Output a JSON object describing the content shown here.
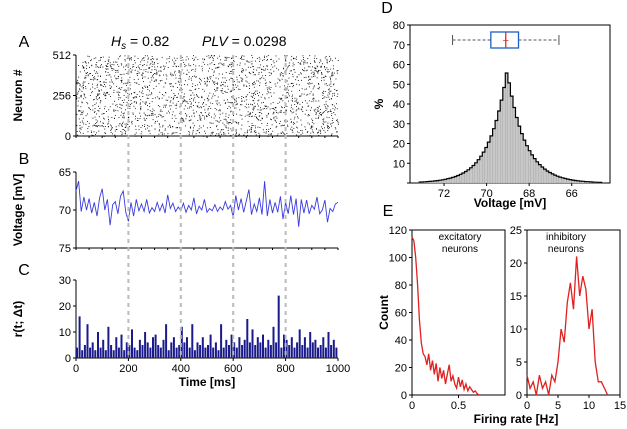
{
  "header": {
    "hs_symbol": "H",
    "hs_sub": "s",
    "hs_text": " = 0.82",
    "plv_label": "PLV",
    "plv_text": " = 0.0298"
  },
  "colors": {
    "raster": "#000000",
    "voltage": "#3a3adf",
    "rate": "#1a1a8c",
    "histogram": "#c8c8c8",
    "box": "#1f5fc4",
    "box_median": "#e03020",
    "firing": "#e02020",
    "divider": "#bbbbbb"
  },
  "chart_data": [
    {
      "id": "A",
      "type": "scatter",
      "letter": "A",
      "ylabel": "Neuron #",
      "xlim": [
        0,
        1000
      ],
      "ylim": [
        0,
        512
      ],
      "yticks": [
        "0",
        "256",
        "512"
      ],
      "ytick_values": [
        0,
        256,
        512
      ],
      "neurons": 512,
      "spike_markers_shown": 2200
    },
    {
      "id": "B",
      "type": "line",
      "letter": "B",
      "ylabel": "Voltage [mV]",
      "xlim": [
        0,
        1000
      ],
      "ylim": [
        -75,
        -65
      ],
      "yticks": [
        "65",
        "70",
        "75"
      ],
      "ytick_values": [
        -65,
        -70,
        -75
      ],
      "x": [
        0,
        10,
        20,
        30,
        40,
        50,
        60,
        70,
        80,
        90,
        100,
        110,
        120,
        130,
        140,
        150,
        160,
        170,
        180,
        190,
        200,
        210,
        220,
        230,
        240,
        250,
        260,
        270,
        280,
        290,
        300,
        310,
        320,
        330,
        340,
        350,
        360,
        370,
        380,
        390,
        400,
        410,
        420,
        430,
        440,
        450,
        460,
        470,
        480,
        490,
        500,
        510,
        520,
        530,
        540,
        550,
        560,
        570,
        580,
        590,
        600,
        610,
        620,
        630,
        640,
        650,
        660,
        670,
        680,
        690,
        700,
        710,
        720,
        730,
        740,
        750,
        760,
        770,
        780,
        790,
        800,
        810,
        820,
        830,
        840,
        850,
        860,
        870,
        880,
        890,
        900,
        910,
        920,
        930,
        940,
        950,
        960,
        970,
        980,
        990,
        1000
      ],
      "values": [
        -67.5,
        -66.2,
        -70.2,
        -68.3,
        -70.0,
        -68.5,
        -70.4,
        -69.0,
        -70.8,
        -68.4,
        -67.2,
        -70.0,
        -68.6,
        -72.0,
        -69.3,
        -68.9,
        -70.5,
        -68.2,
        -67.5,
        -70.3,
        -71.5,
        -69.0,
        -70.8,
        -68.6,
        -70.1,
        -69.2,
        -70.2,
        -68.6,
        -70.4,
        -69.7,
        -70.2,
        -69.0,
        -70.1,
        -69.2,
        -70.4,
        -68.0,
        -69.8,
        -69.1,
        -70.2,
        -69.6,
        -70.1,
        -69.1,
        -70.3,
        -69.4,
        -70.0,
        -68.4,
        -70.5,
        -69.5,
        -70.0,
        -68.6,
        -70.3,
        -69.8,
        -70.1,
        -69.3,
        -70.2,
        -69.6,
        -70.0,
        -68.9,
        -69.9,
        -69.4,
        -71.0,
        -68.1,
        -70.0,
        -68.5,
        -70.3,
        -68.8,
        -67.3,
        -70.6,
        -69.2,
        -70.2,
        -68.4,
        -70.6,
        -66.2,
        -70.8,
        -68.6,
        -70.4,
        -69.0,
        -70.3,
        -68.2,
        -71.2,
        -69.0,
        -70.5,
        -68.1,
        -70.6,
        -68.5,
        -72.2,
        -68.6,
        -70.4,
        -68.7,
        -70.5,
        -69.4,
        -69.9,
        -68.3,
        -70.5,
        -70.0,
        -68.7,
        -71.6,
        -69.8,
        -70.2,
        -69.2,
        -69.0
      ]
    },
    {
      "id": "C",
      "type": "bar",
      "letter": "C",
      "ylabel": "r(t; Δt)",
      "xlabel": "Time [ms]",
      "xlim": [
        0,
        1000
      ],
      "ylim": [
        0,
        30
      ],
      "yticks": [
        "0",
        "10",
        "20",
        "30"
      ],
      "ytick_values": [
        0,
        10,
        20,
        30
      ],
      "xticks": [
        "0",
        "200",
        "400",
        "600",
        "800",
        "1000"
      ],
      "xtick_values": [
        0,
        200,
        400,
        600,
        800,
        1000
      ],
      "x": [
        0,
        10,
        20,
        30,
        40,
        50,
        60,
        70,
        80,
        90,
        100,
        110,
        120,
        130,
        140,
        150,
        160,
        170,
        180,
        190,
        200,
        210,
        220,
        230,
        240,
        250,
        260,
        270,
        280,
        290,
        300,
        310,
        320,
        330,
        340,
        350,
        360,
        370,
        380,
        390,
        400,
        410,
        420,
        430,
        440,
        450,
        460,
        470,
        480,
        490,
        500,
        510,
        520,
        530,
        540,
        550,
        560,
        570,
        580,
        590,
        600,
        610,
        620,
        630,
        640,
        650,
        660,
        670,
        680,
        690,
        700,
        710,
        720,
        730,
        740,
        750,
        760,
        770,
        780,
        790,
        800,
        810,
        820,
        830,
        840,
        850,
        860,
        870,
        880,
        890,
        900,
        910,
        920,
        930,
        940,
        950,
        960,
        970,
        980,
        990
      ],
      "values": [
        4,
        16,
        3,
        5,
        13,
        4,
        6,
        3,
        10,
        4,
        7,
        3,
        12,
        5,
        3,
        8,
        4,
        9,
        3,
        6,
        5,
        11,
        4,
        3,
        7,
        5,
        10,
        6,
        4,
        8,
        9,
        5,
        4,
        7,
        13,
        3,
        6,
        8,
        4,
        5,
        12,
        6,
        8,
        4,
        13,
        3,
        6,
        5,
        8,
        4,
        5,
        9,
        4,
        6,
        3,
        13,
        4,
        7,
        5,
        9,
        6,
        4,
        8,
        5,
        7,
        15,
        6,
        11,
        5,
        8,
        6,
        9,
        4,
        7,
        5,
        12,
        6,
        24,
        4,
        9,
        7,
        5,
        8,
        4,
        6,
        11,
        5,
        8,
        4,
        10,
        6,
        7,
        4,
        5,
        8,
        4,
        10,
        5,
        7,
        4
      ]
    },
    {
      "id": "D",
      "type": "bar",
      "letter": "D",
      "ylabel": "%",
      "xlabel": "Voltage [mV]",
      "xlim": [
        -73.6,
        -64.2
      ],
      "ylim": [
        0,
        80
      ],
      "yticks": [
        "0",
        "10",
        "20",
        "30",
        "40",
        "50",
        "60",
        "70",
        "80"
      ],
      "ytick_values": [
        0,
        10,
        20,
        30,
        40,
        50,
        60,
        70,
        80
      ],
      "xticks": [
        "72",
        "70",
        "68",
        "66"
      ],
      "xtick_values": [
        -72,
        -70,
        -68,
        -66
      ],
      "peak_value": 57,
      "peak_at": -69.1,
      "box": {
        "whisker_low": -71.6,
        "q1": -69.8,
        "median": -69.1,
        "q3": -68.5,
        "whisker_high": -66.6,
        "mean": -69.1
      }
    },
    {
      "id": "E1",
      "type": "line",
      "letter": "E",
      "annotation_line1": "excitatory",
      "annotation_line2": "neurons",
      "ylabel": "Count",
      "xlim": [
        0,
        1
      ],
      "ylim": [
        0,
        120
      ],
      "yticks": [
        "0",
        "20",
        "40",
        "60",
        "80",
        "100",
        "120"
      ],
      "ytick_values": [
        0,
        20,
        40,
        60,
        80,
        100,
        120
      ],
      "xticks": [
        "0",
        "0.5"
      ],
      "xtick_values": [
        0,
        0.5
      ],
      "x": [
        0,
        0.02,
        0.04,
        0.06,
        0.08,
        0.1,
        0.12,
        0.14,
        0.16,
        0.18,
        0.2,
        0.22,
        0.24,
        0.26,
        0.28,
        0.3,
        0.32,
        0.34,
        0.36,
        0.38,
        0.4,
        0.42,
        0.44,
        0.46,
        0.48,
        0.5,
        0.52,
        0.54,
        0.56,
        0.58,
        0.6,
        0.62,
        0.64,
        0.66,
        0.68,
        0.7,
        0.72
      ],
      "values": [
        115,
        112,
        100,
        80,
        55,
        38,
        30,
        28,
        22,
        30,
        18,
        25,
        15,
        23,
        10,
        20,
        12,
        18,
        8,
        15,
        22,
        10,
        14,
        8,
        5,
        13,
        6,
        11,
        4,
        8,
        3,
        6,
        4,
        2,
        3,
        1,
        0
      ]
    },
    {
      "id": "E2",
      "type": "line",
      "annotation_line1": "inhibitory",
      "annotation_line2": "neurons",
      "xlabel": "Firing rate [Hz]",
      "xlim": [
        0,
        15
      ],
      "ylim": [
        0,
        25
      ],
      "yticks": [
        "0",
        "5",
        "10",
        "15",
        "20",
        "25"
      ],
      "ytick_values": [
        0,
        5,
        10,
        15,
        20,
        25
      ],
      "xticks": [
        "0",
        "5",
        "10",
        "15"
      ],
      "xtick_values": [
        0,
        5,
        10,
        15
      ],
      "x": [
        0,
        0.5,
        1,
        1.5,
        2,
        2.5,
        3,
        3.5,
        4,
        4.5,
        5,
        5.5,
        6,
        6.5,
        7,
        7.5,
        8,
        8.5,
        9,
        9.5,
        10,
        10.5,
        11,
        11.5,
        12,
        12.5,
        13
      ],
      "values": [
        3,
        1,
        2,
        0,
        3,
        1,
        2,
        0,
        3,
        2,
        5,
        10,
        8,
        14,
        17,
        13,
        21,
        15,
        18,
        16,
        10,
        13,
        5,
        2,
        2,
        1,
        0
      ]
    }
  ]
}
